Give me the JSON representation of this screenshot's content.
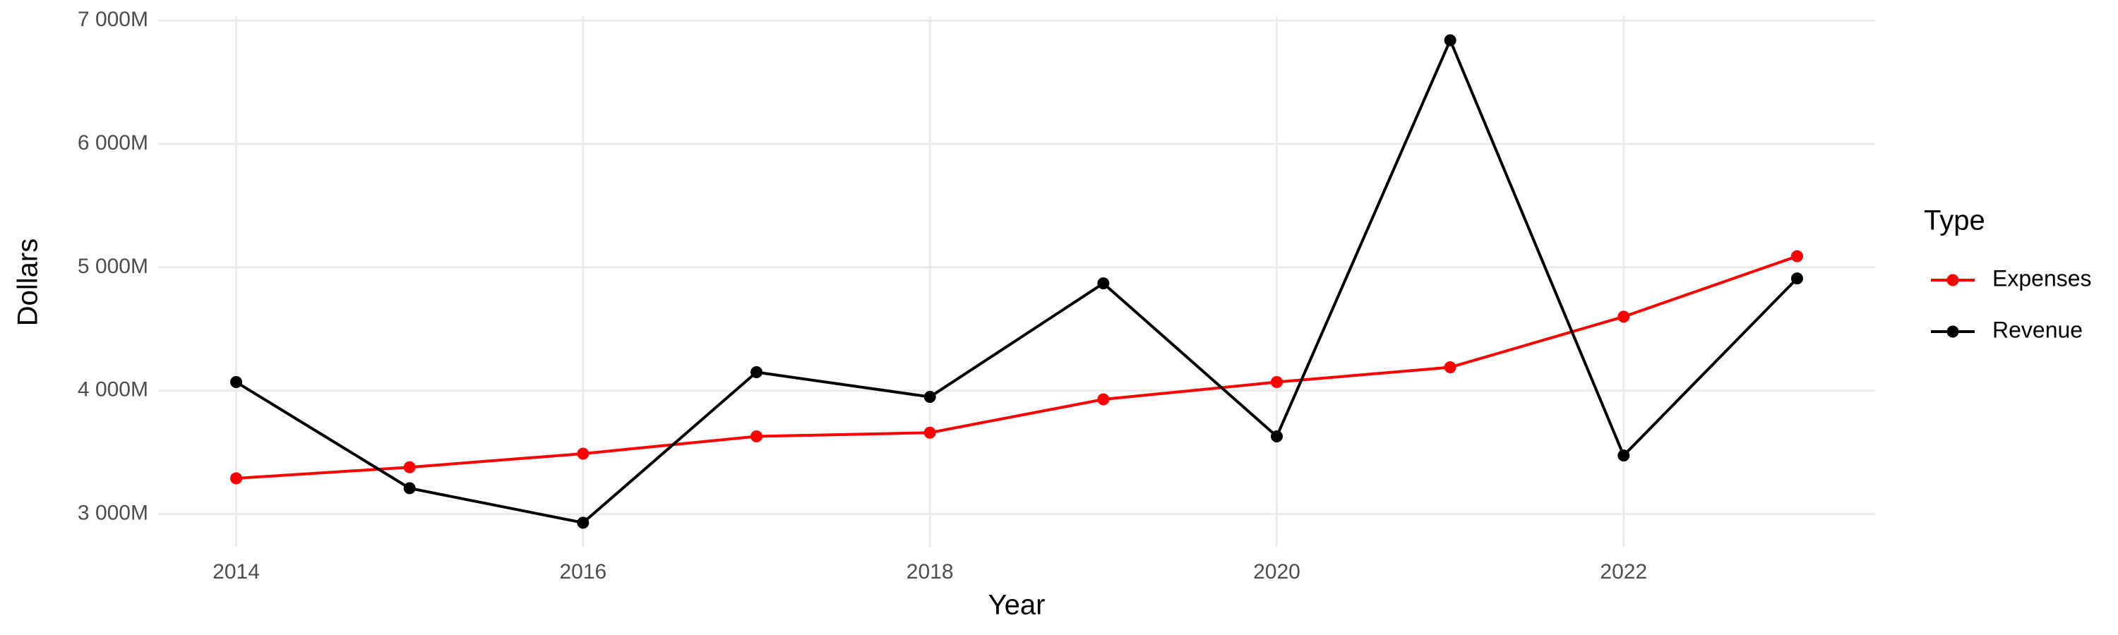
{
  "chart_data": {
    "type": "line",
    "x_label": "Year",
    "y_label": "Dollars",
    "legend_title": "Type",
    "legend_position": "right",
    "grid": true,
    "x": [
      2014,
      2015,
      2016,
      2017,
      2018,
      2019,
      2020,
      2021,
      2022,
      2023
    ],
    "series": [
      {
        "name": "Expenses",
        "color": "#ff0000",
        "values": [
          3290000000,
          3380000000,
          3490000000,
          3630000000,
          3660000000,
          3930000000,
          4070000000,
          4190000000,
          4600000000,
          5090000000
        ]
      },
      {
        "name": "Revenue",
        "color": "#000000",
        "values": [
          4070000000,
          3210000000,
          2930000000,
          4150000000,
          3950000000,
          4870000000,
          3630000000,
          6840000000,
          3475000000,
          4910000000
        ]
      }
    ],
    "xlim": [
      2013.55,
      2023.45
    ],
    "xticks": [
      2014,
      2016,
      2018,
      2020,
      2022
    ],
    "ylim": [
      2735000000,
      7035000000
    ],
    "yticks": [
      {
        "value": 3000000000,
        "label": "3 000M"
      },
      {
        "value": 4000000000,
        "label": "4 000M"
      },
      {
        "value": 5000000000,
        "label": "5 000M"
      },
      {
        "value": 6000000000,
        "label": "6 000M"
      },
      {
        "value": 7000000000,
        "label": "7 000M"
      }
    ]
  }
}
